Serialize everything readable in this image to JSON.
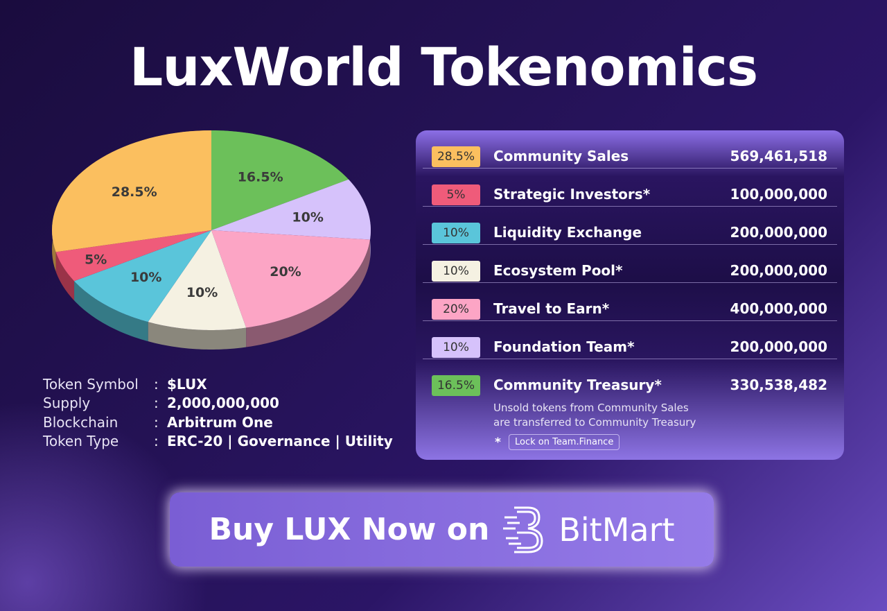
{
  "title": "LuxWorld Tokenomics",
  "chart_data": {
    "type": "pie",
    "slices": [
      {
        "label": "16.5%",
        "value": 16.5,
        "color": "#6cc05a",
        "side": "#4a8a3d"
      },
      {
        "label": "10%",
        "value": 10,
        "color": "#d6c2fb",
        "side": "#8a7aa8"
      },
      {
        "label": "20%",
        "value": 20,
        "color": "#fca5c5",
        "side": "#8a5a70"
      },
      {
        "label": "10%",
        "value": 10,
        "color": "#f5f1e2",
        "side": "#8a877c"
      },
      {
        "label": "10%",
        "value": 10,
        "color": "#5ac5da",
        "side": "#357a86"
      },
      {
        "label": "5%",
        "value": 5,
        "color": "#ef5b7a",
        "side": "#9a3348"
      },
      {
        "label": "28.5%",
        "value": 28.5,
        "color": "#fbbf5f",
        "side": "#a07a3a"
      }
    ]
  },
  "token_info": [
    {
      "label": "Token Symbol",
      "sep": ":",
      "value": "$LUX"
    },
    {
      "label": "Supply",
      "sep": ":",
      "value": "2,000,000,000"
    },
    {
      "label": "Blockchain",
      "sep": ":",
      "value": "Arbitrum One"
    },
    {
      "label": "Token Type",
      "sep": ":",
      "value": "ERC-20 | Governance | Utility"
    }
  ],
  "allocation": [
    {
      "pct": "28.5%",
      "name": "Community Sales",
      "amount": "569,461,518",
      "color": "#fbbf5f"
    },
    {
      "pct": "5%",
      "name": "Strategic Investors*",
      "amount": "100,000,000",
      "color": "#ef5b7a"
    },
    {
      "pct": "10%",
      "name": "Liquidity Exchange",
      "amount": "200,000,000",
      "color": "#5ac5da"
    },
    {
      "pct": "10%",
      "name": "Ecosystem Pool*",
      "amount": "200,000,000",
      "color": "#f5f1e2"
    },
    {
      "pct": "20%",
      "name": "Travel to Earn*",
      "amount": "400,000,000",
      "color": "#fca5c5"
    },
    {
      "pct": "10%",
      "name": "Foundation Team*",
      "amount": "200,000,000",
      "color": "#d6c2fb"
    },
    {
      "pct": "16.5%",
      "name": "Community Treasury*",
      "amount": "330,538,482",
      "color": "#6cc05a"
    }
  ],
  "note_line1": "Unsold tokens from Community Sales",
  "note_line2": "are transferred to Community Treasury",
  "footnote_star": "*",
  "footnote_label": "Lock on Team.Finance",
  "cta": {
    "text": "Buy LUX Now on",
    "brand": "BitMart"
  }
}
